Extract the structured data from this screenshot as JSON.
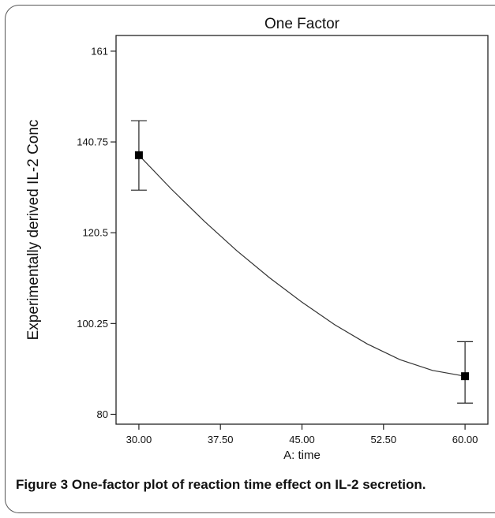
{
  "chart_data": {
    "type": "line",
    "title": "One Factor",
    "xlabel": "A: time",
    "ylabel": "Experimentally derived IL-2 Conc",
    "xlim": [
      27.9,
      62.1
    ],
    "ylim": [
      77.8,
      164.5
    ],
    "x_ticks": [
      30,
      37.5,
      45,
      52.5,
      60
    ],
    "x_tick_labels": [
      "30.00",
      "37.50",
      "45.00",
      "52.50",
      "60.00"
    ],
    "y_ticks": [
      80,
      100.25,
      120.5,
      140.75,
      161
    ],
    "y_tick_labels": [
      "80",
      "100.25",
      "120.5",
      "140.75",
      "161"
    ],
    "points": [
      {
        "x": 30,
        "y": 137.8,
        "err_low": 130.0,
        "err_high": 145.5
      },
      {
        "x": 60,
        "y": 88.5,
        "err_low": 82.5,
        "err_high": 96.2
      }
    ],
    "fit_curve": {
      "x": [
        30,
        33,
        36,
        39,
        42,
        45,
        48,
        51,
        54,
        57,
        60
      ],
      "y": [
        137.8,
        130.2,
        123.1,
        116.5,
        110.5,
        105.0,
        100.0,
        95.7,
        92.2,
        89.8,
        88.5
      ]
    },
    "grid": false,
    "legend": "none"
  },
  "caption": {
    "lead": "Figure 3",
    "text": " One-factor plot of reaction time effect on IL-2 secretion."
  }
}
